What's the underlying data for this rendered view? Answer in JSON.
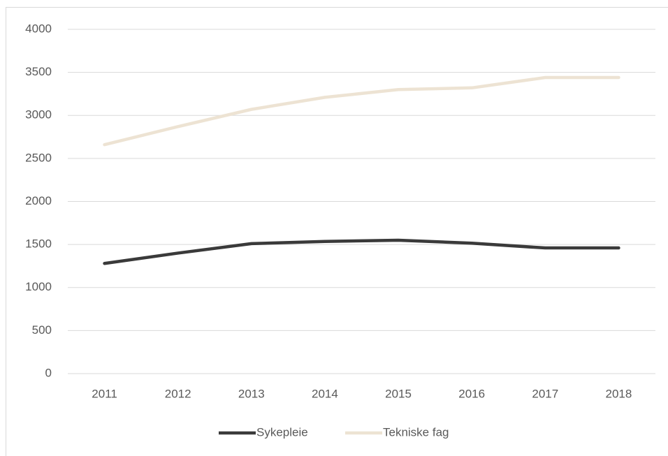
{
  "chart_data": {
    "type": "line",
    "categories": [
      "2011",
      "2012",
      "2013",
      "2014",
      "2015",
      "2016",
      "2017",
      "2018"
    ],
    "series": [
      {
        "name": "Sykepleie",
        "color": "#3a3a3a",
        "values": [
          1280,
          1400,
          1510,
          1535,
          1550,
          1515,
          1460,
          1460
        ]
      },
      {
        "name": "Tekniske fag",
        "color": "#ede3d3",
        "values": [
          2660,
          2870,
          3070,
          3210,
          3300,
          3320,
          3440,
          3440
        ]
      }
    ],
    "ylim": [
      0,
      4000
    ],
    "yticks": [
      0,
      500,
      1000,
      1500,
      2000,
      2500,
      3000,
      3500,
      4000
    ],
    "grid": true,
    "legend": "bottom"
  }
}
